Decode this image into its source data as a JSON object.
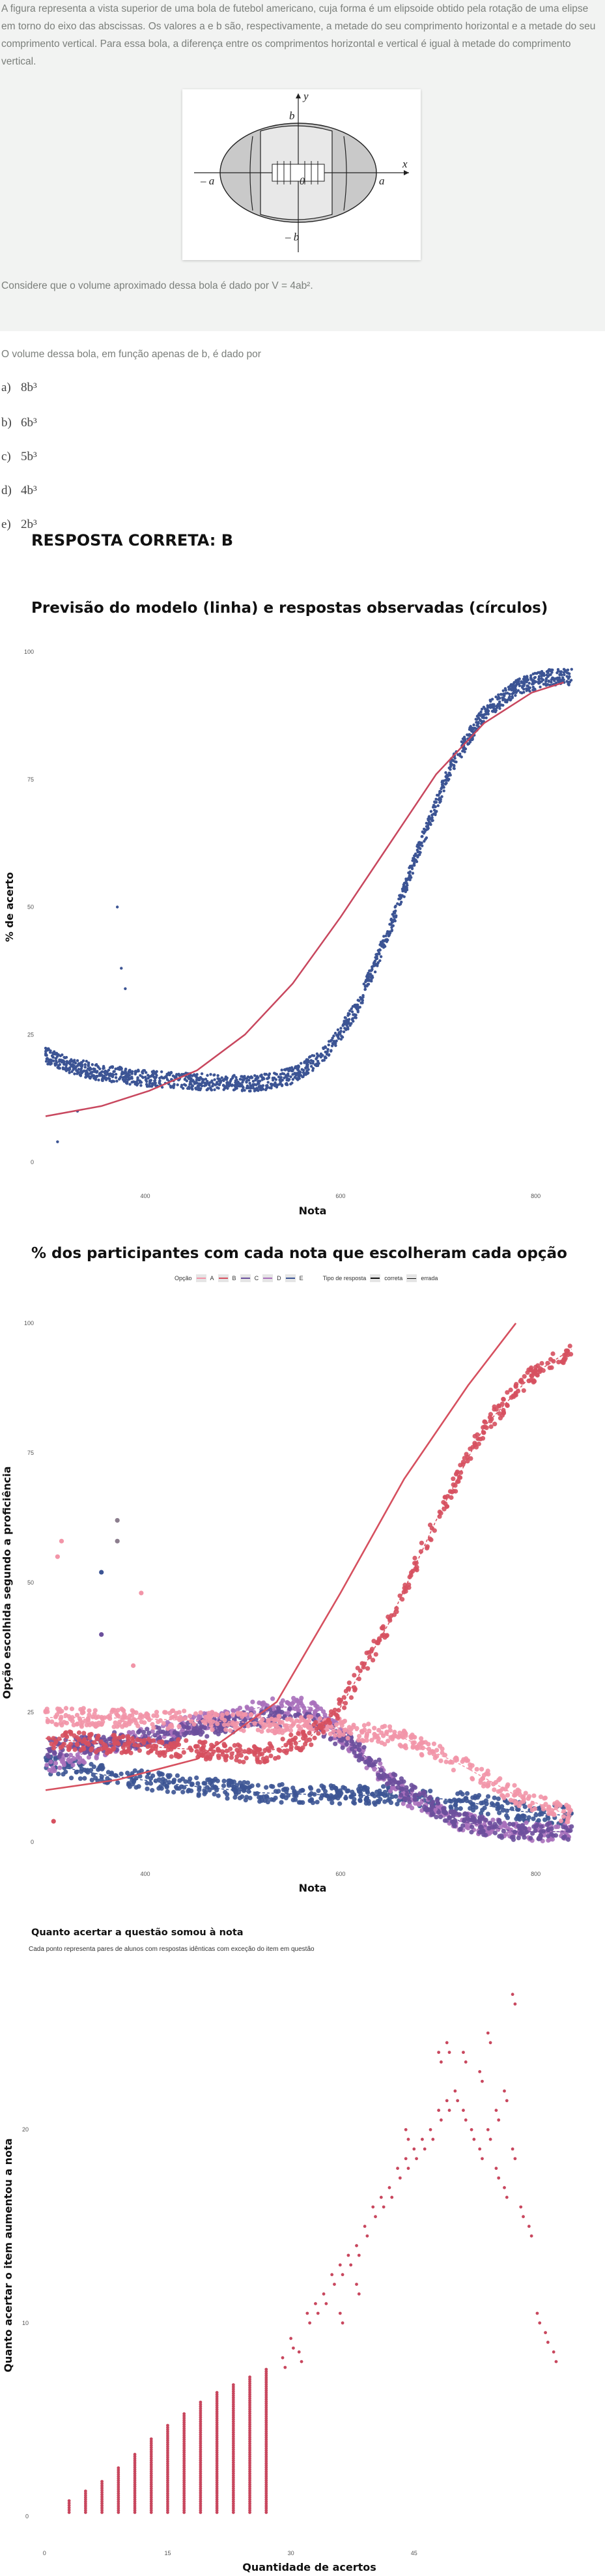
{
  "question": {
    "intro": "A figura representa a vista superior de uma bola de futebol americano, cuja forma é um elipsoide obtido pela rotação de uma elipse em torno do eixo das abscissas. Os valores a e b são, respectivamente, a metade do seu comprimento horizontal e a metade do seu comprimento vertical. Para essa bola, a diferença entre os comprimentos horizontal e vertical é igual à metade do comprimento vertical.",
    "figure": {
      "label_y": "y",
      "label_x": "x",
      "label_b": "b",
      "label_minus_b": "– b",
      "label_a": "a",
      "label_minus_a": "– a",
      "label_origin": "0"
    },
    "volume_text": "Considere que o volume aproximado dessa bola é dado por V = 4ab².",
    "prompt": "O volume dessa bola, em função apenas de b, é dado por",
    "options": [
      {
        "letter": "a)",
        "text": "8b³"
      },
      {
        "letter": "b)",
        "text": "6b³"
      },
      {
        "letter": "c)",
        "text": "5b³"
      },
      {
        "letter": "d)",
        "text": "4b³"
      },
      {
        "letter": "e)",
        "text": "2b³"
      }
    ],
    "answer": "RESPOSTA CORRETA: B"
  },
  "chart_data": [
    {
      "type": "scatter",
      "title": "Previsão do modelo (linha) e respostas observadas (círculos)",
      "xlabel": "Nota",
      "ylabel": "% de acerto",
      "xticks": [
        "400",
        "600",
        "800"
      ],
      "yticks": [
        0,
        25,
        50,
        75,
        100
      ],
      "ylim": [
        0,
        100
      ],
      "xlim": [
        330,
        1000
      ],
      "point_color": "#3c5494",
      "line_color": "#c8475e",
      "observed": [
        [
          330,
          21
        ],
        [
          360,
          19
        ],
        [
          400,
          17.5
        ],
        [
          450,
          16.5
        ],
        [
          500,
          16
        ],
        [
          550,
          15.5
        ],
        [
          600,
          15.5
        ],
        [
          640,
          17
        ],
        [
          680,
          21
        ],
        [
          720,
          30
        ],
        [
          760,
          45
        ],
        [
          800,
          62
        ],
        [
          840,
          78
        ],
        [
          880,
          88
        ],
        [
          920,
          93
        ],
        [
          960,
          95
        ],
        [
          990,
          95
        ]
      ],
      "outliers": [
        [
          345,
          4
        ],
        [
          370,
          10
        ],
        [
          420,
          50
        ],
        [
          425,
          38
        ],
        [
          430,
          34
        ]
      ],
      "model_curve": [
        [
          330,
          9
        ],
        [
          400,
          11
        ],
        [
          460,
          14
        ],
        [
          520,
          18
        ],
        [
          580,
          25
        ],
        [
          640,
          35
        ],
        [
          700,
          48
        ],
        [
          760,
          62
        ],
        [
          820,
          76
        ],
        [
          880,
          86
        ],
        [
          940,
          92
        ],
        [
          980,
          94
        ]
      ]
    },
    {
      "type": "scatter",
      "title": "% dos participantes com cada nota que escolheram cada opção",
      "xlabel": "Nota",
      "ylabel": "Opção escolhida segundo a proficiência",
      "xticks": [
        "400",
        "600",
        "800"
      ],
      "yticks": [
        0,
        25,
        50,
        75,
        100
      ],
      "ylim": [
        0,
        100
      ],
      "xlim": [
        330,
        1000
      ],
      "legend": {
        "option_title": "Opção",
        "options": [
          "A",
          "B",
          "C",
          "D",
          "E"
        ],
        "type_title": "Tipo de resposta",
        "types": [
          "correta",
          "errada"
        ]
      },
      "colors": {
        "A": "#f295a8",
        "B": "#d6505f",
        "C": "#6b4f9c",
        "D": "#a970bb",
        "E": "#3c5494",
        "gray": "#8c7e8e"
      },
      "series": [
        {
          "name": "A",
          "values": [
            [
              330,
              24
            ],
            [
              400,
              24
            ],
            [
              500,
              23.5
            ],
            [
              600,
              23
            ],
            [
              700,
              22
            ],
            [
              780,
              20
            ],
            [
              850,
              15
            ],
            [
              920,
              9
            ],
            [
              990,
              5
            ]
          ]
        },
        {
          "name": "B",
          "values": [
            [
              330,
              20
            ],
            [
              400,
              19
            ],
            [
              500,
              18
            ],
            [
              600,
              17
            ],
            [
              660,
              20
            ],
            [
              700,
              26
            ],
            [
              760,
              42
            ],
            [
              820,
              62
            ],
            [
              880,
              80
            ],
            [
              940,
              90
            ],
            [
              990,
              95
            ]
          ]
        },
        {
          "name": "C",
          "values": [
            [
              330,
              18
            ],
            [
              400,
              19
            ],
            [
              500,
              21
            ],
            [
              600,
              24
            ],
            [
              660,
              24
            ],
            [
              720,
              18
            ],
            [
              780,
              10
            ],
            [
              850,
              4
            ],
            [
              920,
              2
            ],
            [
              990,
              2
            ]
          ]
        },
        {
          "name": "D",
          "values": [
            [
              330,
              15
            ],
            [
              400,
              18
            ],
            [
              500,
              22
            ],
            [
              600,
              26
            ],
            [
              660,
              26
            ],
            [
              720,
              18
            ],
            [
              780,
              9
            ],
            [
              850,
              4
            ],
            [
              920,
              2
            ],
            [
              990,
              2
            ]
          ]
        },
        {
          "name": "E",
          "values": [
            [
              330,
              15
            ],
            [
              400,
              13
            ],
            [
              500,
              11
            ],
            [
              600,
              9.5
            ],
            [
              700,
              9
            ],
            [
              780,
              9
            ],
            [
              850,
              8
            ],
            [
              920,
              6
            ],
            [
              990,
              5
            ]
          ]
        }
      ],
      "correct_curve": [
        [
          330,
          10
        ],
        [
          420,
          12
        ],
        [
          520,
          16
        ],
        [
          620,
          27
        ],
        [
          700,
          48
        ],
        [
          780,
          70
        ],
        [
          860,
          88
        ],
        [
          920,
          100
        ]
      ],
      "outliers": [
        [
          340,
          4
        ],
        [
          345,
          55
        ],
        [
          350,
          58
        ],
        [
          400,
          40
        ],
        [
          400,
          52
        ],
        [
          420,
          58
        ],
        [
          420,
          62
        ],
        [
          440,
          34
        ],
        [
          450,
          48
        ]
      ]
    },
    {
      "type": "scatter",
      "title": "Quanto acertar a questão somou à nota",
      "subtitle": "Cada ponto representa pares de alunos com respostas idênticas com exceção do item em questão",
      "xlabel": "Quantidade de acertos",
      "ylabel": "Quanto acertar o item aumentou a nota",
      "xticks": [
        "0",
        "15",
        "30",
        "45"
      ],
      "yticks": [
        0,
        10,
        20
      ],
      "ylim": [
        -1,
        28
      ],
      "xlim": [
        -0.5,
        65
      ],
      "point_color": "#c8475e",
      "columns": [
        [
          3,
          0.2,
          0.8
        ],
        [
          5,
          0.2,
          1.3
        ],
        [
          7,
          0.2,
          1.8
        ],
        [
          9,
          0.2,
          2.5
        ],
        [
          11,
          0.2,
          3.2
        ],
        [
          13,
          0.2,
          4
        ],
        [
          15,
          0.2,
          4.7
        ],
        [
          17,
          0.2,
          5.3
        ],
        [
          19,
          0.2,
          5.9
        ],
        [
          21,
          0.2,
          6.4
        ],
        [
          23,
          0.2,
          6.8
        ],
        [
          25,
          0.2,
          7.2
        ],
        [
          27,
          0.2,
          7.6
        ]
      ],
      "points": [
        [
          29,
          8.2
        ],
        [
          30,
          9.2
        ],
        [
          31,
          8.5
        ],
        [
          32,
          10.5
        ],
        [
          33,
          11
        ],
        [
          34,
          11.5
        ],
        [
          35,
          12.5
        ],
        [
          36,
          13
        ],
        [
          37,
          13.5
        ],
        [
          38,
          14
        ],
        [
          39,
          15
        ],
        [
          40,
          16
        ],
        [
          41,
          16.5
        ],
        [
          42,
          17
        ],
        [
          43,
          18
        ],
        [
          44,
          18.5
        ],
        [
          45,
          19
        ],
        [
          46,
          19.5
        ],
        [
          47,
          20
        ],
        [
          48,
          21
        ],
        [
          49,
          21.5
        ],
        [
          50,
          22
        ],
        [
          51,
          21
        ],
        [
          52,
          20
        ],
        [
          53,
          19
        ],
        [
          54,
          20
        ],
        [
          55,
          18
        ],
        [
          56,
          17
        ],
        [
          57,
          19
        ],
        [
          58,
          16
        ],
        [
          59,
          15
        ],
        [
          60,
          10.5
        ],
        [
          61,
          9.5
        ],
        [
          62,
          8.5
        ],
        [
          57,
          27
        ],
        [
          36,
          10.5
        ],
        [
          38,
          12
        ],
        [
          44,
          20
        ],
        [
          48,
          24
        ],
        [
          49,
          24.5
        ],
        [
          51,
          24
        ],
        [
          53,
          23
        ],
        [
          54,
          25
        ],
        [
          55,
          21
        ],
        [
          56,
          22
        ]
      ]
    }
  ]
}
